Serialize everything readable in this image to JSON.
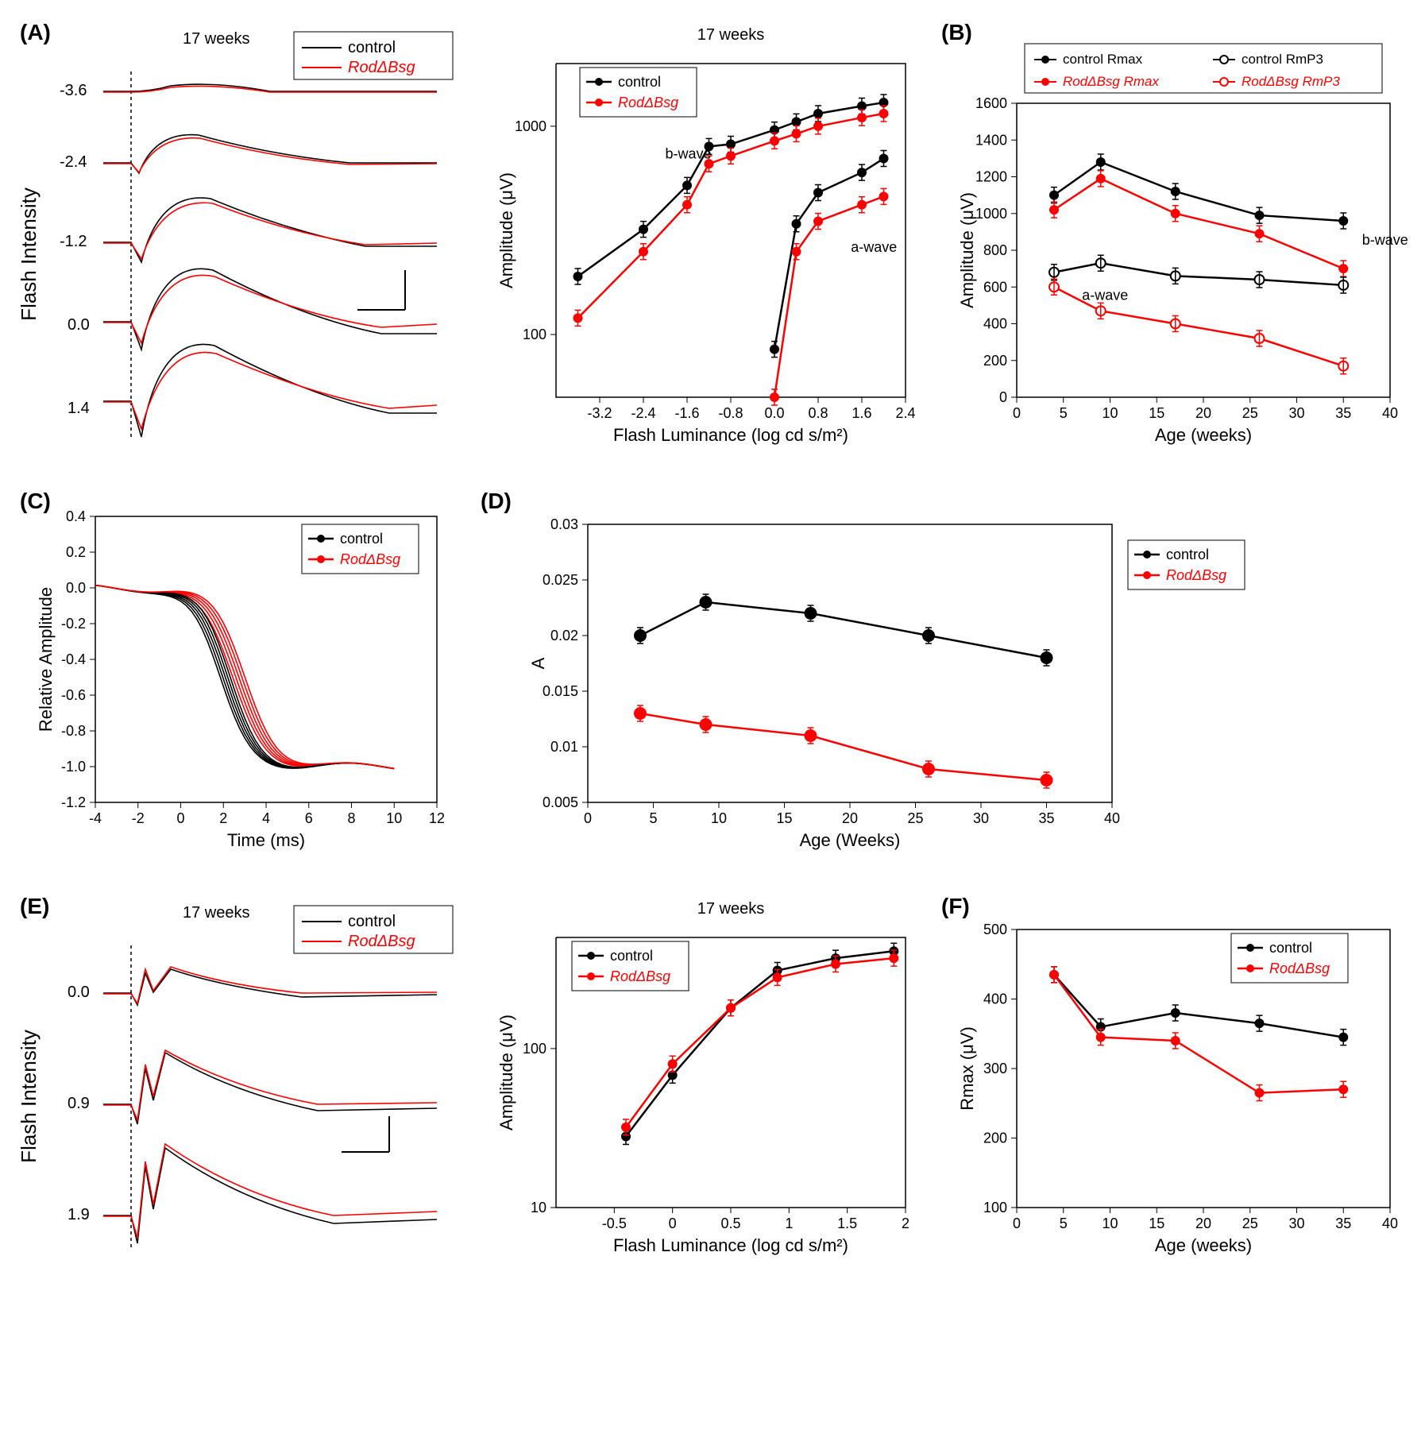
{
  "colors": {
    "control": "#000000",
    "rodbsg": "#ff0000",
    "axis": "#000000",
    "bg": "#ffffff"
  },
  "fonts": {
    "panel_label": 28,
    "axis_label": 22,
    "tick": 18,
    "legend": 20,
    "title": 20
  },
  "panelA_traces": {
    "title": "17 weeks",
    "ylabel": "Flash Intensity",
    "legend": [
      "control",
      "RodΔBsg"
    ],
    "intensities": [
      "-3.6",
      "-2.4",
      "-1.2",
      "0.0",
      "1.4"
    ]
  },
  "panelA_amp": {
    "title": "17 weeks",
    "legend": [
      "control",
      "RodΔBsg"
    ],
    "xlabel": "Flash Luminance (log cd s/m²)",
    "ylabel": "Amplitude (μV)",
    "xlim": [
      -4,
      2.4
    ],
    "xticks": [
      -3.2,
      -2.4,
      -1.6,
      -0.8,
      0.0,
      0.8,
      1.6,
      2.4
    ],
    "yticks": [
      100,
      1000
    ],
    "annotations": [
      "b-wave",
      "a-wave"
    ],
    "bwave_control": {
      "x": [
        -3.6,
        -2.4,
        -1.6,
        -1.2,
        -0.8,
        0.0,
        0.4,
        0.8,
        1.6,
        2.0
      ],
      "y": [
        190,
        320,
        520,
        800,
        820,
        960,
        1050,
        1150,
        1250,
        1300
      ]
    },
    "bwave_rodbsg": {
      "x": [
        -3.6,
        -2.4,
        -1.6,
        -1.2,
        -0.8,
        0.0,
        0.4,
        0.8,
        1.6,
        2.0
      ],
      "y": [
        120,
        250,
        420,
        660,
        720,
        850,
        920,
        1000,
        1100,
        1150
      ]
    },
    "awave_control": {
      "x": [
        0.0,
        0.4,
        0.8,
        1.6,
        2.0
      ],
      "y": [
        85,
        340,
        480,
        600,
        700
      ]
    },
    "awave_rodbsg": {
      "x": [
        0.0,
        0.4,
        0.8,
        1.6,
        2.0
      ],
      "y": [
        50,
        250,
        350,
        420,
        460
      ]
    }
  },
  "panelB": {
    "xlabel": "Age (weeks)",
    "ylabel": "Amplitude (μV)",
    "xlim": [
      0,
      40
    ],
    "ylim": [
      0,
      1600
    ],
    "xticks": [
      0,
      5,
      10,
      15,
      20,
      25,
      30,
      35,
      40
    ],
    "yticks": [
      0,
      200,
      400,
      600,
      800,
      1000,
      1200,
      1400,
      1600
    ],
    "legend": [
      "control Rmax",
      "control RmP3",
      "RodΔBsg Rmax",
      "RodΔBsg RmP3"
    ],
    "annotations": [
      "b-wave",
      "a-wave"
    ],
    "control_rmax": {
      "x": [
        4,
        9,
        17,
        26,
        35
      ],
      "y": [
        1100,
        1280,
        1120,
        990,
        960
      ]
    },
    "rodbsg_rmax": {
      "x": [
        4,
        9,
        17,
        26,
        35
      ],
      "y": [
        1020,
        1190,
        1000,
        890,
        700
      ]
    },
    "control_rmp3": {
      "x": [
        4,
        9,
        17,
        26,
        35
      ],
      "y": [
        680,
        730,
        660,
        640,
        610
      ]
    },
    "rodbsg_rmp3": {
      "x": [
        4,
        9,
        17,
        26,
        35
      ],
      "y": [
        600,
        470,
        400,
        320,
        170
      ]
    }
  },
  "panelC": {
    "legend": [
      "control",
      "RodΔBsg"
    ],
    "xlabel": "Time (ms)",
    "ylabel": "Relative Amplitude",
    "xlim": [
      -4,
      12
    ],
    "ylim": [
      -1.2,
      0.4
    ],
    "xticks": [
      -4,
      -2,
      0,
      2,
      4,
      6,
      8,
      10,
      12
    ],
    "yticks": [
      -1.2,
      -1.0,
      -0.8,
      -0.6,
      -0.4,
      -0.2,
      0.0,
      0.2,
      0.4
    ]
  },
  "panelD": {
    "legend": [
      "control",
      "RodΔBsg"
    ],
    "xlabel": "Age (Weeks)",
    "ylabel": "A",
    "xlim": [
      0,
      40
    ],
    "ylim": [
      0.005,
      0.03
    ],
    "xticks": [
      0,
      5,
      10,
      15,
      20,
      25,
      30,
      35,
      40
    ],
    "yticks": [
      0.005,
      0.01,
      0.015,
      0.02,
      0.025,
      0.03
    ],
    "control": {
      "x": [
        4,
        9,
        17,
        26,
        35
      ],
      "y": [
        0.02,
        0.023,
        0.022,
        0.02,
        0.018
      ]
    },
    "rodbsg": {
      "x": [
        4,
        9,
        17,
        26,
        35
      ],
      "y": [
        0.013,
        0.012,
        0.011,
        0.008,
        0.007
      ]
    }
  },
  "panelE_traces": {
    "title": "17 weeks",
    "ylabel": "Flash Intensity",
    "legend": [
      "control",
      "RodΔBsg"
    ],
    "intensities": [
      "0.0",
      "0.9",
      "1.9"
    ]
  },
  "panelE_amp": {
    "title": "17 weeks",
    "legend": [
      "control",
      "RodΔBsg"
    ],
    "xlabel": "Flash Luminance (log cd s/m²)",
    "ylabel": "Amplitude (μV)",
    "xlim": [
      -1,
      2
    ],
    "xticks": [
      -0.5,
      0,
      0.5,
      1,
      1.5,
      2
    ],
    "yticks": [
      10,
      100
    ],
    "control": {
      "x": [
        -0.4,
        0.0,
        0.5,
        0.9,
        1.4,
        1.9
      ],
      "y": [
        28,
        68,
        180,
        310,
        370,
        410
      ]
    },
    "rodbsg": {
      "x": [
        -0.4,
        0.0,
        0.5,
        0.9,
        1.4,
        1.9
      ],
      "y": [
        32,
        80,
        180,
        280,
        340,
        370
      ]
    }
  },
  "panelF": {
    "legend": [
      "control",
      "RodΔBsg"
    ],
    "xlabel": "Age (weeks)",
    "ylabel": "Rmax (μV)",
    "xlim": [
      0,
      40
    ],
    "ylim": [
      100,
      500
    ],
    "xticks": [
      0,
      5,
      10,
      15,
      20,
      25,
      30,
      35,
      40
    ],
    "yticks": [
      100,
      200,
      300,
      400,
      500
    ],
    "control": {
      "x": [
        4,
        9,
        17,
        26,
        35
      ],
      "y": [
        435,
        360,
        380,
        365,
        345
      ]
    },
    "rodbsg": {
      "x": [
        4,
        9,
        17,
        26,
        35
      ],
      "y": [
        435,
        345,
        340,
        265,
        270
      ]
    }
  }
}
